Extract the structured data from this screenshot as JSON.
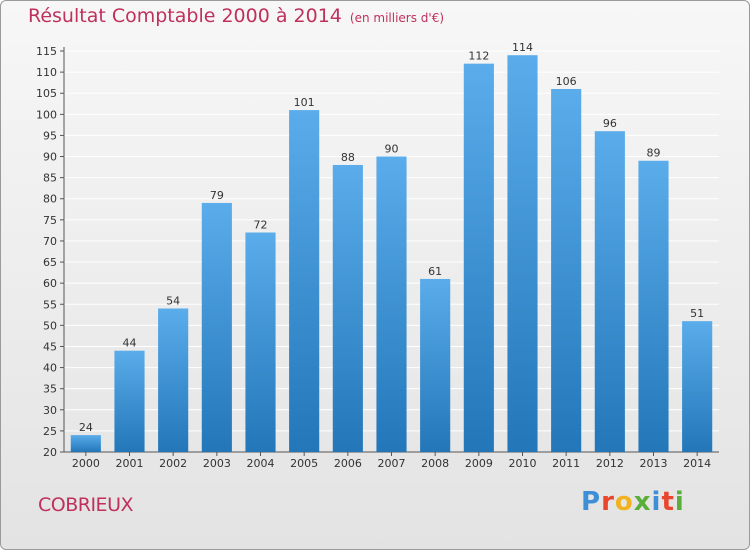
{
  "header": {
    "title": "Résultat Comptable 2000 à 2014",
    "unit": "(en milliers d'€)"
  },
  "footer": {
    "commune": "COBRIEUX",
    "logo_letters": [
      "P",
      "r",
      "o",
      "x",
      "i",
      "t",
      "i"
    ]
  },
  "colors": {
    "accent": "#c0305d",
    "bar_top": "#5aacea",
    "bar_bottom": "#2377b9",
    "grid": "#ffffff",
    "background": "#eaeaea"
  },
  "chart_data": {
    "type": "bar",
    "title": "Résultat Comptable 2000 à 2014",
    "xlabel": "",
    "ylabel": "",
    "categories": [
      "2000",
      "2001",
      "2002",
      "2003",
      "2004",
      "2005",
      "2006",
      "2007",
      "2008",
      "2009",
      "2010",
      "2011",
      "2012",
      "2013",
      "2014"
    ],
    "values": [
      24,
      44,
      54,
      79,
      72,
      101,
      88,
      90,
      61,
      112,
      114,
      106,
      96,
      89,
      51
    ],
    "ylim": [
      20,
      115
    ],
    "yticks": [
      20,
      25,
      30,
      35,
      40,
      45,
      50,
      55,
      60,
      65,
      70,
      75,
      80,
      85,
      90,
      95,
      100,
      105,
      110,
      115
    ],
    "grid": true
  }
}
